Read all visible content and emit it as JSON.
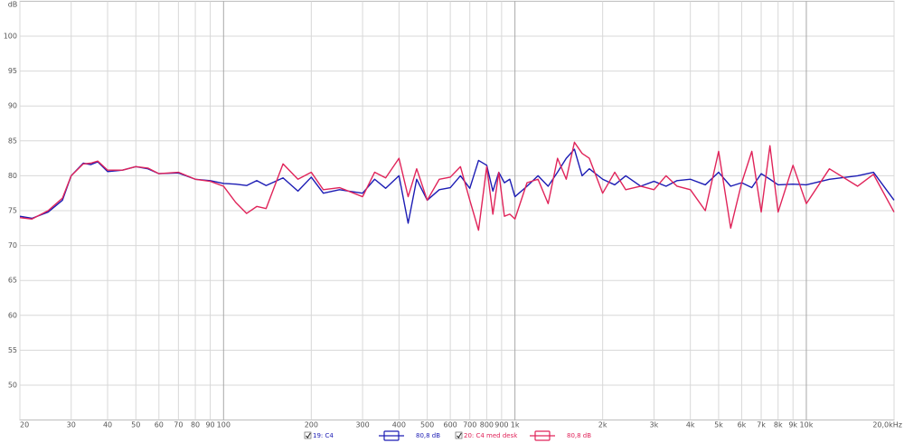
{
  "chart_data": {
    "type": "line",
    "y_label": "dB",
    "x_scale": "log",
    "grid": true,
    "xlim": [
      20,
      20000
    ],
    "ylim": [
      45,
      105
    ],
    "yticks": [
      50,
      55,
      60,
      65,
      70,
      75,
      80,
      85,
      90,
      95,
      100
    ],
    "xticks": [
      20,
      30,
      40,
      50,
      60,
      70,
      80,
      90,
      100,
      200,
      300,
      400,
      500,
      600,
      700,
      800,
      900,
      {
        "value": 1000,
        "label": "1k"
      },
      {
        "value": 2000,
        "label": "2k"
      },
      {
        "value": 3000,
        "label": "3k"
      },
      {
        "value": 4000,
        "label": "4k"
      },
      {
        "value": 5000,
        "label": "5k"
      },
      {
        "value": 6000,
        "label": "6k"
      },
      {
        "value": 7000,
        "label": "7k"
      },
      {
        "value": 8000,
        "label": "8k"
      },
      {
        "value": 9000,
        "label": "9k"
      },
      {
        "value": 10000,
        "label": "10k"
      },
      {
        "value": 20000,
        "label": "20,0kHz"
      }
    ],
    "x": [
      20,
      22,
      25,
      28,
      30,
      33,
      35,
      37,
      40,
      45,
      50,
      55,
      60,
      70,
      80,
      90,
      100,
      110,
      120,
      130,
      140,
      160,
      180,
      200,
      220,
      250,
      300,
      330,
      360,
      400,
      430,
      460,
      500,
      550,
      600,
      650,
      700,
      750,
      800,
      840,
      880,
      920,
      960,
      1000,
      1100,
      1200,
      1300,
      1400,
      1500,
      1600,
      1700,
      1800,
      2000,
      2200,
      2400,
      2700,
      3000,
      3300,
      3600,
      4000,
      4500,
      5000,
      5500,
      6000,
      6500,
      7000,
      7500,
      8000,
      9000,
      10000,
      12000,
      15000,
      17000,
      20000
    ],
    "series": [
      {
        "name": "19: C4",
        "level_label": "80,8 dB",
        "color": "#1c1cb4",
        "values": [
          74.2,
          73.9,
          74.8,
          76.5,
          80,
          81.8,
          81.6,
          82,
          80.6,
          80.8,
          81.3,
          81,
          80.3,
          80.4,
          79.5,
          79.3,
          78.9,
          78.8,
          78.6,
          79.3,
          78.6,
          79.7,
          77.8,
          79.8,
          77.5,
          78,
          77.5,
          79.5,
          78.2,
          80,
          73.2,
          79.5,
          76.5,
          78,
          78.3,
          80,
          78.2,
          82.2,
          81.5,
          77.8,
          80.5,
          79,
          79.5,
          77,
          78.5,
          80,
          78.5,
          80.5,
          82.5,
          83.8,
          80,
          81,
          79.5,
          78.7,
          80,
          78.5,
          79.2,
          78.5,
          79.3,
          79.5,
          78.7,
          80.5,
          78.5,
          79,
          78.3,
          80.3,
          79.5,
          78.7,
          78.8,
          78.7,
          79.5,
          80,
          80.5,
          76.5
        ]
      },
      {
        "name": "20: C4 med desk",
        "level_label": "80,8 dB",
        "color": "#e0245a",
        "values": [
          74,
          73.8,
          75,
          76.8,
          80,
          81.7,
          81.8,
          82.1,
          80.8,
          80.8,
          81.3,
          81.1,
          80.3,
          80.5,
          79.5,
          79.2,
          78.5,
          76.2,
          74.6,
          75.6,
          75.3,
          81.7,
          79.5,
          80.5,
          78,
          78.3,
          77,
          80.5,
          79.7,
          82.5,
          77,
          81,
          76.5,
          79.5,
          79.8,
          81.3,
          76.5,
          72.2,
          81.3,
          74.5,
          80.5,
          74.2,
          74.5,
          73.8,
          79,
          79.5,
          76,
          82.5,
          79.5,
          84.8,
          83.2,
          82.5,
          77.5,
          80.5,
          78,
          78.5,
          78,
          80,
          78.5,
          78,
          75,
          83.5,
          72.5,
          79,
          83.5,
          74.8,
          84.3,
          74.8,
          81.5,
          76,
          81,
          78.5,
          80.2,
          74.8
        ]
      }
    ]
  }
}
